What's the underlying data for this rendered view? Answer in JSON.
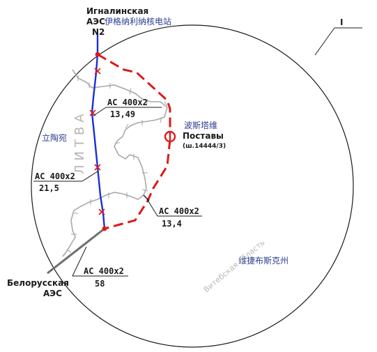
{
  "sheet_marker": "I",
  "stations": {
    "ignalina": {
      "name_ru_line1": "Игналинская",
      "name_ru_line2": "АЭС",
      "name_cn": "伊格纳利纳核电站",
      "unit": "N2"
    },
    "postavy": {
      "name_cn": "波斯塔维",
      "name_ru": "Поставы",
      "code": "(ш.14444/3)"
    },
    "belarusian": {
      "name_ru_line1": "Белорусская",
      "name_ru_line2": "АЭС"
    }
  },
  "regions": {
    "lithuania_cn": "立陶宛",
    "lithuania_ru": "ЛИТВА",
    "vitebsk_cn": "维捷布斯克州",
    "vitebsk_ru": "Витебская область"
  },
  "lines": [
    {
      "cable": "АС 400x2",
      "length": "13,49"
    },
    {
      "cable": "АС 400x2",
      "length": "21,5"
    },
    {
      "cable": "АС 400x2",
      "length": "13,4"
    },
    {
      "cable": "АС 400x2",
      "length": "58"
    }
  ],
  "colors": {
    "existing_line": "#1a2fd8",
    "planned_line": "#e01818",
    "border": "#a8a8a8",
    "connector_line": "#6e6e6e",
    "circle": "#1a1a1a"
  }
}
